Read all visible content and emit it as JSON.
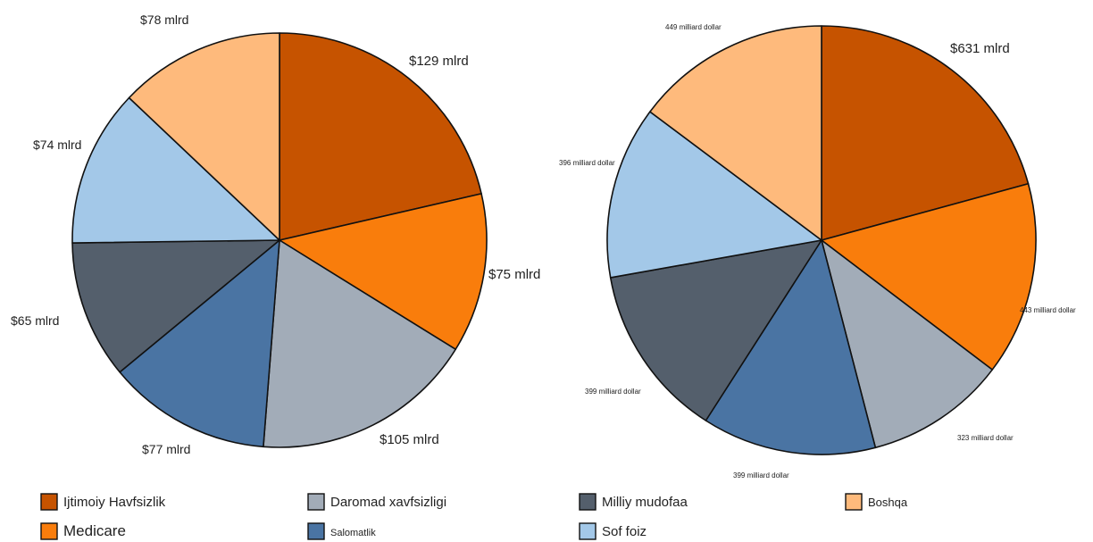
{
  "chart_data": [
    {
      "type": "pie",
      "slices": [
        {
          "label": "Ijtimoiy Havfsizlik",
          "value": 129,
          "data_label": "$129 mlrd",
          "color": "#c65300"
        },
        {
          "label": "Medicare",
          "value": 75,
          "data_label": "$75 mlrd",
          "color": "#f97d0c"
        },
        {
          "label": "Daromad xavfsizligi",
          "value": 105,
          "data_label": "$105 mlrd",
          "color": "#a2acb8"
        },
        {
          "label": "Salomatlik",
          "value": 77,
          "data_label": "$77 mlrd",
          "color": "#4a74a3"
        },
        {
          "label": "Milliy mudofaa",
          "value": 65,
          "data_label": "$65 mlrd",
          "color": "#545f6c"
        },
        {
          "label": "Sof foiz",
          "value": 74,
          "data_label": "$74 mlrd",
          "color": "#a3c8e8"
        },
        {
          "label": "Boshqa",
          "value": 78,
          "data_label": "$78 mlrd",
          "color": "#feba7c"
        }
      ]
    },
    {
      "type": "pie",
      "slices": [
        {
          "label": "Ijtimoiy Havfsizlik",
          "value": 631,
          "data_label": "$631 mlrd",
          "color": "#c65300"
        },
        {
          "label": "Medicare",
          "value": 443,
          "data_label": "443 milliard dollar",
          "color": "#f97d0c"
        },
        {
          "label": "Daromad xavfsizligi",
          "value": 323,
          "data_label": "323 milliard dollar",
          "color": "#a2acb8"
        },
        {
          "label": "Salomatlik",
          "value": 399,
          "data_label": "399 milliard dollar",
          "color": "#4a74a3"
        },
        {
          "label": "Milliy mudofaa",
          "value": 399,
          "data_label": "399 milliard dollar",
          "color": "#545f6c"
        },
        {
          "label": "Sof foiz",
          "value": 396,
          "data_label": "396 milliard dollar",
          "color": "#a3c8e8"
        },
        {
          "label": "Boshqa",
          "value": 449,
          "data_label": "449 milliard dollar",
          "color": "#feba7c"
        }
      ]
    }
  ],
  "legend": {
    "placement": "bottom",
    "items": [
      {
        "label": "Ijtimoiy Havfsizlik",
        "color": "#c65300"
      },
      {
        "label": "Medicare",
        "color": "#f97d0c"
      },
      {
        "label": "Daromad xavfsizligi",
        "color": "#a2acb8"
      },
      {
        "label": "Salomatlik",
        "color": "#4a74a3"
      },
      {
        "label": "Milliy mudofaa",
        "color": "#545f6c"
      },
      {
        "label": "Sof foiz",
        "color": "#a3c8e8"
      },
      {
        "label": "Boshqa",
        "color": "#feba7c"
      }
    ]
  }
}
